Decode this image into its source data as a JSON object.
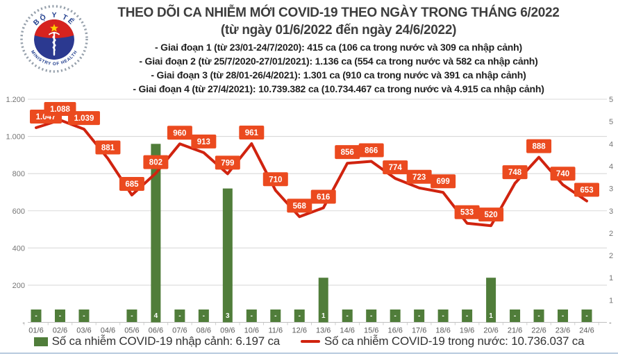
{
  "header": {
    "title": "THEO DÕI CA NHIỄM MỚI COVID-19 THEO NGÀY TRONG THÁNG 6/2022",
    "subtitle": "(từ ngày 01/6/2022 đến ngày 24/6/2022)",
    "phases": [
      "- Giai đoạn 1 (từ 23/01-24/7/2020): 415 ca (106 ca trong nước và 309 ca nhập cảnh)",
      "- Giai đoạn 2 (từ 25/7/2020-27/01/2021): 1.136 ca (554 ca trong nước và 582 ca nhập cảnh)",
      "- Giai đoạn 3 (từ 28/01-26/4/2021): 1.301 ca (910 ca trong nước và 391 ca nhập cảnh)",
      "- Giai đoạn 4 (từ 27/4/2021): 10.739.382 ca (10.734.467 ca trong nước và 4.915 ca nhập cảnh)"
    ],
    "logo": {
      "top_text": "BỘ Y TẾ",
      "bottom_text": "MINISTRY OF HEALTH"
    }
  },
  "chart_data": {
    "type": "line+bar",
    "title": "THEO DÕI CA NHIỄM MỚI COVID-19 THEO NGÀY TRONG THÁNG 6/2022",
    "subtitle": "(từ ngày 01/6/2022 đến ngày 24/6/2022)",
    "categories": [
      "01/6",
      "02/6",
      "03/6",
      "04/6",
      "05/6",
      "06/6",
      "07/6",
      "08/6",
      "09/6",
      "10/6",
      "11/6",
      "12/6",
      "13/6",
      "14/6",
      "15/6",
      "16/6",
      "17/6",
      "18/6",
      "19/6",
      "20/6",
      "21/6",
      "22/6",
      "23/6",
      "24/6"
    ],
    "series": [
      {
        "name": "Số ca nhiễm COVID-19 trong nước",
        "type": "line",
        "axis": "left",
        "color": "#d0230f",
        "values": [
          1047,
          1088,
          1039,
          881,
          685,
          802,
          960,
          913,
          799,
          961,
          710,
          568,
          616,
          856,
          866,
          774,
          723,
          699,
          533,
          520,
          748,
          888,
          740,
          653
        ]
      },
      {
        "name": "Số ca nhiễm COVID-19 nhập cảnh",
        "type": "bar",
        "axis": "right",
        "color": "#507d3a",
        "values": [
          0,
          0,
          0,
          null,
          0,
          4,
          0,
          0,
          3,
          0,
          0,
          0,
          1,
          0,
          0,
          0,
          0,
          0,
          0,
          1,
          0,
          0,
          0,
          0
        ]
      }
    ],
    "point_labels": [
      "1.047",
      "1.088",
      "1.039",
      "881",
      "685",
      "802",
      "960",
      "913",
      "799",
      "961",
      "710",
      "568",
      "616",
      "856",
      "866",
      "774",
      "723",
      "699",
      "533",
      "520",
      "748",
      "888",
      "740",
      "653"
    ],
    "bar_labels": [
      "-",
      "-",
      "-",
      null,
      "-",
      "4",
      "-",
      "-",
      "3",
      "-",
      "-",
      "-",
      "1",
      "-",
      "-",
      "-",
      "-",
      "-",
      "-",
      "1",
      "-",
      "-",
      "-",
      "-"
    ],
    "left_axis": {
      "min": 0,
      "max": 1200,
      "tick_labels": [
        "1.200",
        "1.000",
        "800",
        "600",
        "400",
        "200",
        "-"
      ]
    },
    "right_axis": {
      "min": 0,
      "max": 5,
      "tick_labels": [
        "5",
        "5",
        "4",
        "4",
        "3",
        "3",
        "2",
        "2",
        "1",
        "1",
        "-"
      ]
    },
    "gridlines": "horizontal",
    "legend_position": "bottom"
  },
  "legend": {
    "bar_label": "Số ca nhiễm COVID-19 nhập cảnh: 6.197 ca",
    "line_label": "Số ca nhiễm COVID-19 trong nước: 10.736.037 ca"
  },
  "colors": {
    "line": "#d0230f",
    "label_box": "#eb4a1f",
    "bar": "#507d3a",
    "grid": "#d9d9d9",
    "axis_line": "#bfbfbf",
    "axis_text": "#757575",
    "x_text": "#595959",
    "bottom_rule": "#b7c9dd",
    "logo_red": "#d6231f",
    "logo_blue": "#2b3990",
    "logo_star": "#ffcf00",
    "logo_text": "#23408f"
  }
}
